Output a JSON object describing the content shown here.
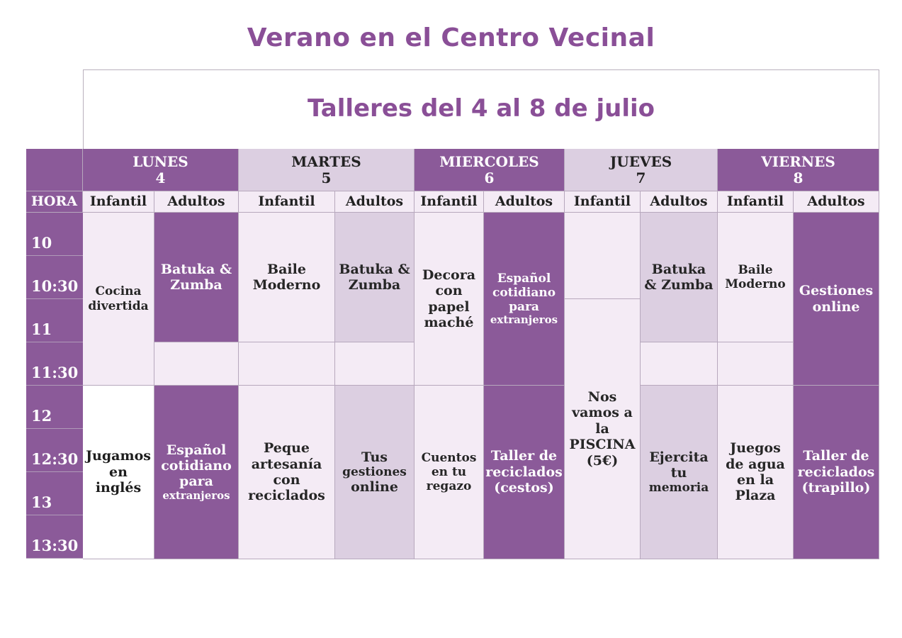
{
  "title": "Verano en el Centro Vecinal",
  "subtitle": "Talleres del 4 al 8 de julio",
  "hora_label": "HORA",
  "days": [
    {
      "name": "LUNES",
      "date": "4"
    },
    {
      "name": "MARTES",
      "date": "5"
    },
    {
      "name": "MIERCOLES",
      "date": "6"
    },
    {
      "name": "JUEVES",
      "date": "7"
    },
    {
      "name": "VIERNES",
      "date": "8"
    }
  ],
  "groups": {
    "infantil": "Infantil",
    "adultos": "Adultos"
  },
  "times": [
    "10",
    "10:30",
    "11",
    "11:30",
    "12",
    "12:30",
    "13",
    "13:30"
  ],
  "activities": {
    "lunes_infantil_am": "Cocina divertida",
    "lunes_adultos_am": "Batuka & Zumba",
    "lunes_infantil_pm": "Jugamos en inglés",
    "lunes_adultos_pm_1": "Español cotidiano para",
    "lunes_adultos_pm_2": "extranjeros",
    "martes_infantil_am": "Baile Moderno",
    "martes_adultos_am": "Batuka & Zumba",
    "martes_infantil_pm": "Peque artesanía con reciclados",
    "martes_adultos_pm_1": "Tus",
    "martes_adultos_pm_2": "gestiones",
    "martes_adultos_pm_3": "online",
    "miercoles_infantil_am": "Decora con papel maché",
    "miercoles_adultos_am_1": "Español cotidiano para",
    "miercoles_adultos_am_2": "extranjeros",
    "miercoles_infantil_pm": "Cuentos en tu regazo",
    "miercoles_adultos_pm": "Taller de reciclados (cestos)",
    "jueves_infantil_pm": "Nos vamos a la PISCINA (5€)",
    "jueves_adultos_am": "Batuka & Zumba",
    "jueves_adultos_pm_1": "Ejercita tu",
    "jueves_adultos_pm_2": "memoria",
    "viernes_infantil_am": "Baile Moderno",
    "viernes_adultos_am": "Gestiones online",
    "viernes_infantil_pm": "Juegos de agua en la Plaza",
    "viernes_adultos_pm": "Taller de reciclados (trapillo)"
  },
  "colors": {
    "accent": "#8b5a99",
    "light": "#dccfe1",
    "pale": "#f4ebf5",
    "title": "#8a4f97"
  }
}
